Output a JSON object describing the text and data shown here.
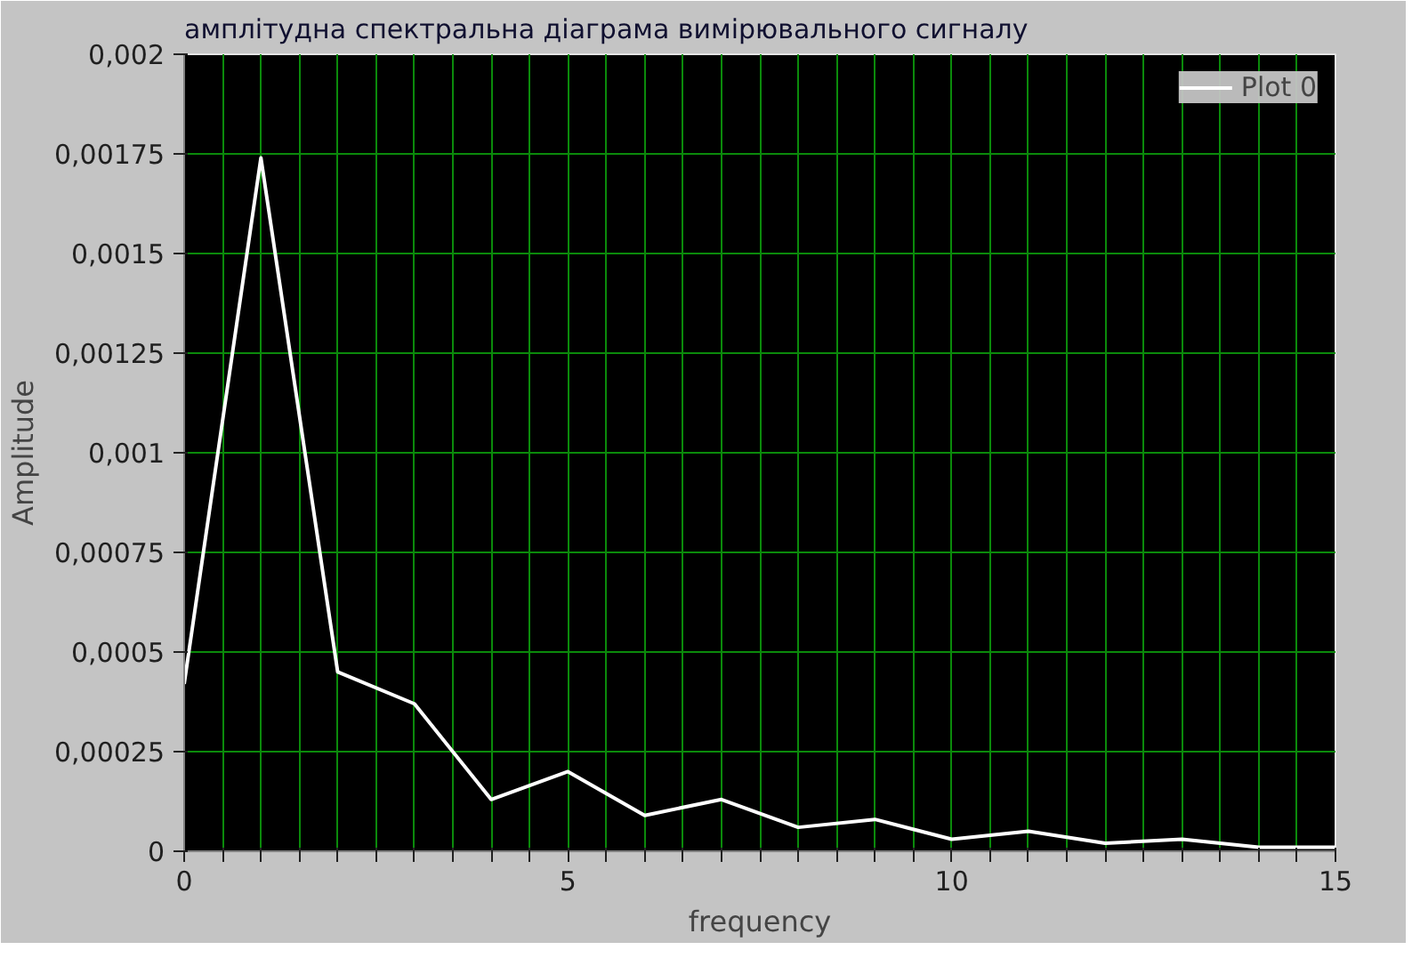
{
  "chart_data": {
    "type": "line",
    "title": "амплітудна спектральна діаграма вимірювального сигналу",
    "xlabel": "frequency",
    "ylabel": "Amplitude",
    "x": [
      0,
      1,
      2,
      3,
      4,
      5,
      6,
      7,
      8,
      9,
      10,
      11,
      12,
      13,
      14,
      15
    ],
    "series": [
      {
        "name": "Plot 0",
        "color": "#ffffff",
        "values": [
          0.00042,
          0.00174,
          0.00045,
          0.00037,
          0.00013,
          0.0002,
          9e-05,
          0.00013,
          6e-05,
          8e-05,
          3e-05,
          5e-05,
          2e-05,
          3e-05,
          1e-05,
          1e-05
        ]
      }
    ],
    "xlim": [
      0,
      15
    ],
    "xticks": [
      0,
      {
        "value": 0.5,
        "label": null
      },
      {
        "value": 1,
        "label": null
      },
      {
        "value": 1.5,
        "label": null
      },
      {
        "value": 2,
        "label": null
      },
      {
        "value": 2.5,
        "label": null
      },
      {
        "value": 3,
        "label": null
      },
      {
        "value": 3.5,
        "label": null
      },
      {
        "value": 4,
        "label": null
      },
      {
        "value": 4.5,
        "label": null
      },
      5,
      {
        "value": 5.5,
        "label": null
      },
      {
        "value": 6,
        "label": null
      },
      {
        "value": 6.5,
        "label": null
      },
      {
        "value": 7,
        "label": null
      },
      {
        "value": 7.5,
        "label": null
      },
      {
        "value": 8,
        "label": null
      },
      {
        "value": 8.5,
        "label": null
      },
      {
        "value": 9,
        "label": null
      },
      {
        "value": 9.5,
        "label": null
      },
      10,
      {
        "value": 10.5,
        "label": null
      },
      {
        "value": 11,
        "label": null
      },
      {
        "value": 11.5,
        "label": null
      },
      {
        "value": 12,
        "label": null
      },
      {
        "value": 12.5,
        "label": null
      },
      {
        "value": 13,
        "label": null
      },
      {
        "value": 13.5,
        "label": null
      },
      {
        "value": 14,
        "label": null
      },
      {
        "value": 14.5,
        "label": null
      },
      15
    ],
    "ylim": [
      0,
      0.002
    ],
    "yticks": [
      {
        "value": 0,
        "label": "0"
      },
      {
        "value": 0.00025,
        "label": "0,00025"
      },
      {
        "value": 0.0005,
        "label": "0,0005"
      },
      {
        "value": 0.00075,
        "label": "0,00075"
      },
      {
        "value": 0.001,
        "label": "0,001"
      },
      {
        "value": 0.00125,
        "label": "0,00125"
      },
      {
        "value": 0.0015,
        "label": "0,0015"
      },
      {
        "value": 0.00175,
        "label": "0,00175"
      },
      {
        "value": 0.002,
        "label": "0,002"
      }
    ],
    "grid": true,
    "legend": "top right",
    "marker": "none",
    "line_style": "solid"
  }
}
